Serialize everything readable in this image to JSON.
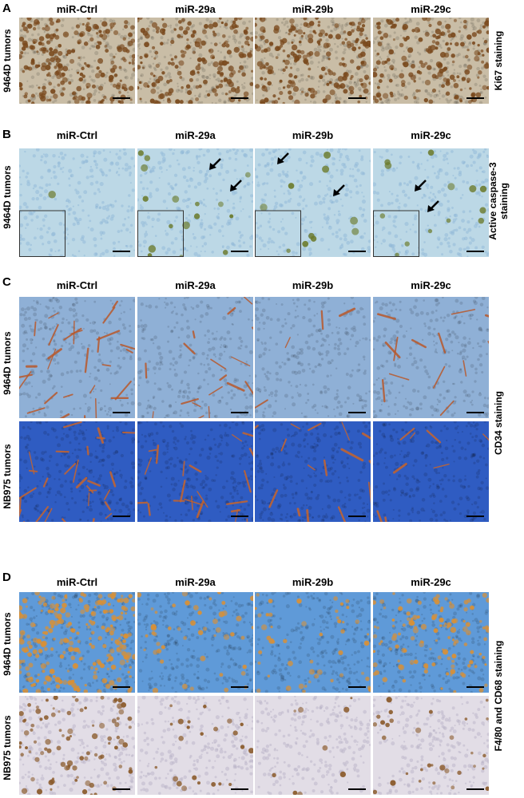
{
  "panels": [
    {
      "letter": "A",
      "columns": [
        "miR-Ctrl",
        "miR-29a",
        "miR-29b",
        "miR-29c"
      ],
      "rows": [
        {
          "label": "9464D tumors",
          "stain": "ki67"
        }
      ],
      "side_label": "Ki67 staining"
    },
    {
      "letter": "B",
      "columns": [
        "miR-Ctrl",
        "miR-29a",
        "miR-29b",
        "miR-29c"
      ],
      "rows": [
        {
          "label": "9464D tumors",
          "stain": "caspase"
        }
      ],
      "side_label_line1": "Active caspase-3",
      "side_label_line2": "staining"
    },
    {
      "letter": "C",
      "columns": [
        "miR-Ctrl",
        "miR-29a",
        "miR-29b",
        "miR-29c"
      ],
      "rows": [
        {
          "label": "9464D tumors",
          "stain": "cd34"
        },
        {
          "label": "NB975 tumors",
          "stain": "cd34nb"
        }
      ],
      "side_label": "CD34 staining"
    },
    {
      "letter": "D",
      "columns": [
        "miR-Ctrl",
        "miR-29a",
        "miR-29b",
        "miR-29c"
      ],
      "rows": [
        {
          "label": "9464D tumors",
          "stain": "f480"
        },
        {
          "label": "NB975 tumors",
          "stain": "cd68"
        }
      ],
      "side_label": "F4/80 and CD68 staining"
    }
  ],
  "colors": {
    "ki67_bg": "#c9bda6",
    "ki67_dot": "#7a4a1e",
    "caspase_bg": "#bcd8e6",
    "caspase_dot": "#6b7a2a",
    "cd34_bg": "#8fb0d6",
    "cd34_vessel": "#b8582a",
    "cd34nb_bg": "#2f5cc2",
    "cd34nb_vessel": "#c8642a",
    "f480_bg": "#5f9ad8",
    "f480_dot": "#d99035",
    "cd68_bg": "#e2dde6",
    "cd68_dot": "#8a5a2a"
  }
}
